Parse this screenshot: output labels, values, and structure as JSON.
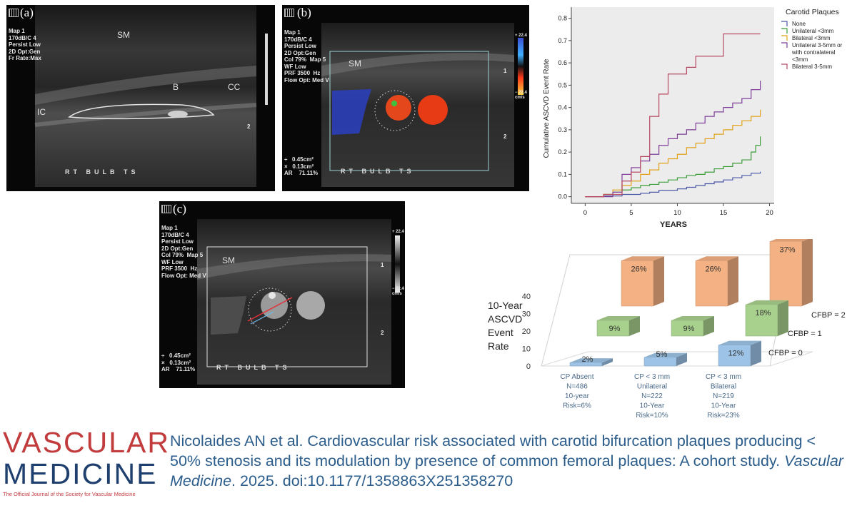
{
  "panels": {
    "a": {
      "label": "(a)",
      "settings": "Map 1\n170dB/C 4\nPersist Low\n2D Opt:Gen\nFr Rate:Max",
      "lbl_sm": "SM",
      "lbl_b": "B",
      "lbl_cc": "CC",
      "lbl_ic": "IC",
      "probe": "RT BULB TS",
      "depth_mark": "2"
    },
    "b": {
      "label": "(b)",
      "settings": "Map 1\n170dB/C 4\nPersist Low\n2D Opt:Gen\nCol 79%  Map 5\nWF Low\nPRF 3500  Hz\nFlow Opt: Med V",
      "lbl_sm": "SM",
      "measure": "÷   0.45cm²\n×   0.13cm²\nAR    71.11%",
      "probe": "RT BULB TS",
      "scale_top": "+ 22.4",
      "scale_bottom": "− 22.4\ncm/s",
      "depth_1": "1",
      "depth_2": "2"
    },
    "c": {
      "label": "(c)",
      "settings": "Map 1\n170dB/C 4\nPersist Low\n2D Opt:Gen\nCol 79%  Map 5\nWF Low\nPRF 3500  Hz\nFlow Opt: Med V",
      "lbl_sm": "SM",
      "measure": "÷   0.45cm²\n×   0.13cm²\nAR    71.11%",
      "probe": "RT BULB TS",
      "scale_top": "+ 22.4",
      "scale_bottom": "− 22.4\ncm/s",
      "depth_1": "1",
      "depth_2": "2"
    }
  },
  "chart_data": [
    {
      "type": "line",
      "title": "",
      "xlabel": "YEARS",
      "ylabel": "Cumulative ASCVD Event Rate",
      "xlim": [
        -1.5,
        20.5
      ],
      "ylim": [
        -0.03,
        0.85
      ],
      "x_ticks": [
        "0",
        "5",
        "10",
        "15",
        "20"
      ],
      "y_ticks": [
        "0.0",
        "0.1",
        "0.2",
        "0.3",
        "0.4",
        "0.5",
        "0.6",
        "0.7",
        "0.8"
      ],
      "legend_title": "Carotid Plaques",
      "legend": [
        "None",
        "Unilateral <3mm",
        "Bilateral <3mm",
        "Unilateral 3-5mm or",
        "with contralateral",
        "<3mm",
        "Bilateral 3-5mm"
      ],
      "series": [
        {
          "name": "None",
          "color": "#4a57a6",
          "x": [
            0,
            2,
            4,
            6,
            7,
            8,
            10,
            11,
            12,
            13,
            14,
            15,
            16,
            17,
            18,
            19
          ],
          "y": [
            0,
            0.003,
            0.01,
            0.015,
            0.02,
            0.028,
            0.035,
            0.042,
            0.05,
            0.058,
            0.066,
            0.075,
            0.085,
            0.095,
            0.105,
            0.112
          ]
        },
        {
          "name": "Unilateral <3mm",
          "color": "#3a9d3a",
          "x": [
            0,
            2,
            3,
            4,
            5,
            6,
            7,
            8,
            9,
            10,
            11,
            12,
            13,
            14,
            15,
            16,
            17,
            18,
            18.5,
            19
          ],
          "y": [
            0,
            0.01,
            0.02,
            0.03,
            0.04,
            0.05,
            0.055,
            0.065,
            0.075,
            0.085,
            0.095,
            0.1,
            0.11,
            0.125,
            0.135,
            0.15,
            0.165,
            0.2,
            0.23,
            0.27
          ]
        },
        {
          "name": "Bilateral <3mm",
          "color": "#e1a21a",
          "x": [
            0,
            2,
            3,
            4,
            5,
            6,
            7,
            8,
            9,
            10,
            11,
            12,
            13,
            14,
            15,
            16,
            17,
            18,
            19
          ],
          "y": [
            0,
            0.01,
            0.03,
            0.05,
            0.07,
            0.1,
            0.12,
            0.15,
            0.17,
            0.19,
            0.22,
            0.24,
            0.26,
            0.28,
            0.3,
            0.32,
            0.34,
            0.36,
            0.39
          ]
        },
        {
          "name": "Unilateral 3-5mm or with contralateral <3mm",
          "color": "#7f3f9a",
          "x": [
            0,
            3,
            4,
            5,
            6,
            7,
            8,
            9,
            10,
            11,
            12,
            13,
            14,
            15,
            16,
            17,
            18,
            19
          ],
          "y": [
            0,
            0.02,
            0.1,
            0.13,
            0.16,
            0.19,
            0.23,
            0.26,
            0.28,
            0.3,
            0.33,
            0.36,
            0.38,
            0.4,
            0.42,
            0.44,
            0.48,
            0.52
          ]
        },
        {
          "name": "Bilateral 3-5mm",
          "color": "#b84a63",
          "x": [
            0,
            2,
            4,
            5,
            6,
            7,
            8,
            9,
            10,
            11,
            12,
            13,
            14,
            15,
            16,
            17,
            18,
            19
          ],
          "y": [
            0,
            0.01,
            0.07,
            0.11,
            0.18,
            0.36,
            0.46,
            0.55,
            0.55,
            0.58,
            0.63,
            0.63,
            0.63,
            0.73,
            0.73,
            0.73,
            0.73,
            0.73
          ]
        }
      ]
    },
    {
      "type": "bar",
      "title": "10-Year ASCVD Event Rate",
      "title_lines": [
        "10-Year",
        "ASCVD",
        "Event",
        "Rate"
      ],
      "ylim": [
        0,
        40
      ],
      "y_ticks": [
        "0",
        "10",
        "20",
        "30",
        "40"
      ],
      "categories": [
        [
          "CP Absent",
          "N=486",
          "10-year",
          "Risk=6%"
        ],
        [
          "CP < 3 mm",
          "Unilateral",
          "N=222",
          "10-Year",
          "Risk=10%"
        ],
        [
          "CP < 3 mm",
          "Bilateral",
          "N=219",
          "10-Year",
          "Risk=23%"
        ]
      ],
      "series": [
        {
          "name": "CFBP = 0",
          "color": "#9dc3e6",
          "values": [
            2,
            5,
            12
          ],
          "labels": [
            "2%",
            "5%",
            "12%"
          ]
        },
        {
          "name": "CFBP = 1",
          "color": "#a9d18e",
          "values": [
            9,
            9,
            18
          ],
          "labels": [
            "9%",
            "9%",
            "18%"
          ]
        },
        {
          "name": "CFBP = 2",
          "color": "#f4b183",
          "values": [
            26,
            26,
            37
          ],
          "labels": [
            "26%",
            "26%",
            "37%"
          ]
        }
      ]
    }
  ],
  "journal": {
    "line1": "VASCULAR",
    "line2": "MEDICINE",
    "tagline": "The Official Journal of the Society for Vascular Medicine"
  },
  "citation": {
    "text": "Nicolaides AN et al. Cardiovascular risk associated with carotid bifurcation plaques producing < 50% stenosis and its modulation by presence of common femoral plaques: A cohort study.",
    "journal": "Vascular Medicine",
    "rest": ". 2025. doi:10.1177/1358863X251358270"
  }
}
